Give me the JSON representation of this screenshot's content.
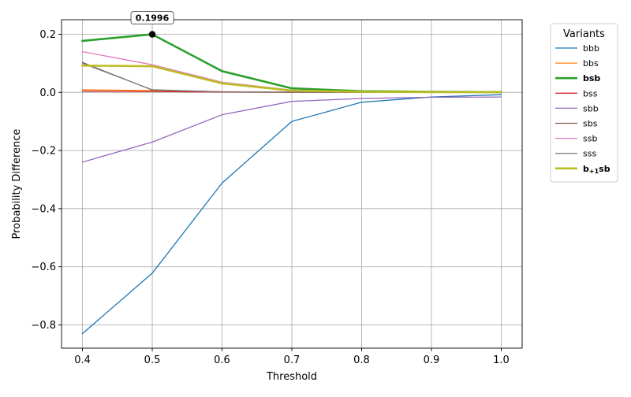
{
  "chart_data": {
    "type": "line",
    "title": "",
    "xlabel": "Threshold",
    "ylabel": "Probability Difference",
    "xlim": [
      0.37,
      1.03
    ],
    "ylim": [
      -0.88,
      0.25
    ],
    "x": [
      0.4,
      0.5,
      0.6,
      0.7,
      0.8,
      0.9,
      1.0
    ],
    "x_ticks": [
      "0.4",
      "0.5",
      "0.6",
      "0.7",
      "0.8",
      "0.9",
      "1.0"
    ],
    "y_ticks": [
      {
        "value": 0.2,
        "label": "0.2"
      },
      {
        "value": 0.0,
        "label": "0.0"
      },
      {
        "value": -0.2,
        "label": "−0.2"
      },
      {
        "value": -0.4,
        "label": "−0.4"
      },
      {
        "value": -0.6,
        "label": "−0.6"
      },
      {
        "value": -0.8,
        "label": "−0.8"
      }
    ],
    "grid": true,
    "legend": {
      "title": "Variants",
      "placement": "outside-right"
    },
    "series": [
      {
        "name": "bbb",
        "color": "#1f77b4",
        "bold": false,
        "values": [
          -0.83,
          -0.622,
          -0.312,
          -0.1,
          -0.034,
          -0.016,
          -0.008
        ]
      },
      {
        "name": "bbs",
        "color": "#ff7f0e",
        "bold": false,
        "values": [
          0.009,
          0.006,
          0.002,
          0.001,
          0.0,
          0.0,
          0.0
        ]
      },
      {
        "name": "bsb",
        "color": "#2ca02c",
        "bold": true,
        "values": [
          0.177,
          0.1996,
          0.073,
          0.014,
          0.004,
          0.002,
          0.001
        ]
      },
      {
        "name": "bss",
        "color": "#d62728",
        "bold": false,
        "values": [
          0.004,
          0.003,
          0.001,
          0.0,
          0.0,
          0.0,
          0.0
        ]
      },
      {
        "name": "sbb",
        "color": "#9467bd",
        "bold": false,
        "values": [
          -0.24,
          -0.171,
          -0.077,
          -0.031,
          -0.021,
          -0.017,
          -0.016
        ]
      },
      {
        "name": "sbs",
        "color": "#8c564b",
        "bold": false,
        "values": [
          0.103,
          0.008,
          0.002,
          0.001,
          0.0,
          0.0,
          0.0
        ]
      },
      {
        "name": "ssb",
        "color": "#e377c2",
        "bold": false,
        "values": [
          0.14,
          0.095,
          0.035,
          0.008,
          0.003,
          0.001,
          0.0
        ]
      },
      {
        "name": "sss",
        "color": "#7f7f7f",
        "bold": false,
        "values": [
          0.1,
          0.009,
          0.002,
          0.001,
          0.0,
          0.0,
          0.0
        ]
      },
      {
        "name": "b+1sb",
        "name_base": "b",
        "name_sub": "+1",
        "name_rest": "sb",
        "color": "#bcbd22",
        "bold": true,
        "values": [
          0.092,
          0.09,
          0.031,
          0.006,
          0.002,
          0.001,
          0.001
        ]
      }
    ],
    "annotations": [
      {
        "text": "0.1996",
        "x": 0.5,
        "y": 0.1996,
        "marker": "black-dot"
      }
    ]
  }
}
